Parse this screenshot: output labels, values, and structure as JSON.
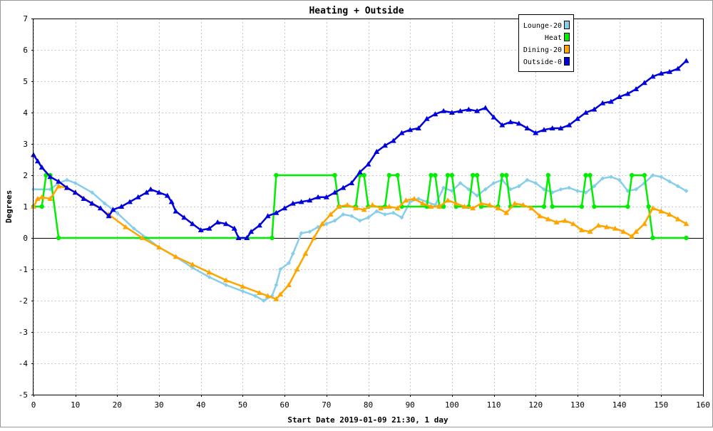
{
  "chart_data": {
    "type": "line",
    "title": "Heating + Outside",
    "xlabel": "Start Date 2019-01-09 21:30, 1 day",
    "ylabel": "Degrees",
    "xlim": [
      0,
      160
    ],
    "ylim": [
      -5,
      7
    ],
    "xticks": [
      0,
      10,
      20,
      30,
      40,
      50,
      60,
      70,
      80,
      90,
      100,
      110,
      120,
      130,
      140,
      150,
      160
    ],
    "yticks": [
      -5,
      -4,
      -3,
      -2,
      -1,
      0,
      1,
      2,
      3,
      4,
      5,
      6,
      7
    ],
    "grid": true,
    "legend_position": "top-right",
    "series": [
      {
        "name": "Lounge-20",
        "color": "#87ceeb",
        "marker": "diamond",
        "points": [
          [
            0,
            1.55
          ],
          [
            4,
            1.55
          ],
          [
            6,
            1.75
          ],
          [
            8,
            1.85
          ],
          [
            10,
            1.75
          ],
          [
            14,
            1.45
          ],
          [
            17,
            1.1
          ],
          [
            20,
            0.8
          ],
          [
            24,
            0.3
          ],
          [
            27,
            0
          ],
          [
            30,
            -0.3
          ],
          [
            34,
            -0.6
          ],
          [
            38,
            -0.95
          ],
          [
            42,
            -1.25
          ],
          [
            46,
            -1.5
          ],
          [
            50,
            -1.7
          ],
          [
            53,
            -1.85
          ],
          [
            55,
            -2.0
          ],
          [
            57,
            -1.85
          ],
          [
            58,
            -1.5
          ],
          [
            59,
            -1.0
          ],
          [
            61,
            -0.8
          ],
          [
            62,
            -0.5
          ],
          [
            64,
            0.15
          ],
          [
            66,
            0.2
          ],
          [
            68,
            0.35
          ],
          [
            70,
            0.45
          ],
          [
            72,
            0.55
          ],
          [
            74,
            0.75
          ],
          [
            76,
            0.7
          ],
          [
            78,
            0.55
          ],
          [
            80,
            0.65
          ],
          [
            82,
            0.85
          ],
          [
            84,
            0.75
          ],
          [
            86,
            0.8
          ],
          [
            88,
            0.65
          ],
          [
            90,
            1.15
          ],
          [
            92,
            1.25
          ],
          [
            94,
            1.15
          ],
          [
            96,
            1.05
          ],
          [
            98,
            1.6
          ],
          [
            100,
            1.5
          ],
          [
            102,
            1.75
          ],
          [
            104,
            1.55
          ],
          [
            106,
            1.35
          ],
          [
            108,
            1.55
          ],
          [
            110,
            1.75
          ],
          [
            112,
            1.85
          ],
          [
            114,
            1.55
          ],
          [
            116,
            1.65
          ],
          [
            118,
            1.85
          ],
          [
            120,
            1.75
          ],
          [
            122,
            1.55
          ],
          [
            124,
            1.45
          ],
          [
            126,
            1.55
          ],
          [
            128,
            1.6
          ],
          [
            130,
            1.5
          ],
          [
            132,
            1.45
          ],
          [
            134,
            1.65
          ],
          [
            136,
            1.9
          ],
          [
            138,
            1.95
          ],
          [
            140,
            1.85
          ],
          [
            142,
            1.5
          ],
          [
            144,
            1.55
          ],
          [
            146,
            1.75
          ],
          [
            148,
            2.0
          ],
          [
            150,
            1.95
          ],
          [
            152,
            1.8
          ],
          [
            154,
            1.65
          ],
          [
            156,
            1.5
          ]
        ]
      },
      {
        "name": "Heat",
        "color": "#00ee00",
        "marker": "circle",
        "points": [
          [
            0,
            1
          ],
          [
            2,
            1
          ],
          [
            3,
            2
          ],
          [
            4,
            2
          ],
          [
            6,
            0
          ],
          [
            57,
            0
          ],
          [
            58,
            2
          ],
          [
            72,
            2
          ],
          [
            73,
            1
          ],
          [
            77,
            1
          ],
          [
            78,
            2
          ],
          [
            79,
            2
          ],
          [
            80,
            1
          ],
          [
            84,
            1
          ],
          [
            85,
            2
          ],
          [
            87,
            2
          ],
          [
            88,
            1
          ],
          [
            94,
            1
          ],
          [
            95,
            2
          ],
          [
            96,
            2
          ],
          [
            97,
            1
          ],
          [
            98,
            1
          ],
          [
            99,
            2
          ],
          [
            100,
            2
          ],
          [
            101,
            1
          ],
          [
            104,
            1
          ],
          [
            105,
            2
          ],
          [
            106,
            2
          ],
          [
            107,
            1
          ],
          [
            111,
            1
          ],
          [
            112,
            2
          ],
          [
            113,
            2
          ],
          [
            114,
            1
          ],
          [
            122,
            1
          ],
          [
            123,
            2
          ],
          [
            124,
            1
          ],
          [
            131,
            1
          ],
          [
            132,
            2
          ],
          [
            133,
            2
          ],
          [
            134,
            1
          ],
          [
            142,
            1
          ],
          [
            143,
            2
          ],
          [
            146,
            2
          ],
          [
            147,
            1
          ],
          [
            148,
            0
          ],
          [
            156,
            0
          ]
        ]
      },
      {
        "name": "Dining-20",
        "color": "#ffa500",
        "marker": "triangle",
        "points": [
          [
            0,
            1
          ],
          [
            1,
            1.25
          ],
          [
            2,
            1.3
          ],
          [
            4,
            1.25
          ],
          [
            6,
            1.65
          ],
          [
            8,
            1.6
          ],
          [
            10,
            1.45
          ],
          [
            14,
            1.1
          ],
          [
            18,
            0.75
          ],
          [
            22,
            0.35
          ],
          [
            26,
            0
          ],
          [
            30,
            -0.3
          ],
          [
            34,
            -0.6
          ],
          [
            38,
            -0.85
          ],
          [
            42,
            -1.1
          ],
          [
            46,
            -1.35
          ],
          [
            50,
            -1.55
          ],
          [
            54,
            -1.75
          ],
          [
            56,
            -1.85
          ],
          [
            58,
            -1.95
          ],
          [
            59,
            -1.8
          ],
          [
            61,
            -1.5
          ],
          [
            63,
            -1.0
          ],
          [
            65,
            -0.5
          ],
          [
            67,
            0
          ],
          [
            69,
            0.45
          ],
          [
            71,
            0.75
          ],
          [
            73,
            1.0
          ],
          [
            75,
            1.05
          ],
          [
            77,
            0.95
          ],
          [
            79,
            0.9
          ],
          [
            81,
            1.05
          ],
          [
            83,
            0.95
          ],
          [
            85,
            1.0
          ],
          [
            87,
            0.95
          ],
          [
            89,
            1.2
          ],
          [
            91,
            1.25
          ],
          [
            93,
            1.1
          ],
          [
            95,
            1.0
          ],
          [
            97,
            1.0
          ],
          [
            99,
            1.2
          ],
          [
            101,
            1.1
          ],
          [
            103,
            1.0
          ],
          [
            105,
            0.95
          ],
          [
            107,
            1.1
          ],
          [
            109,
            1.05
          ],
          [
            111,
            0.95
          ],
          [
            113,
            0.8
          ],
          [
            115,
            1.1
          ],
          [
            117,
            1.05
          ],
          [
            119,
            0.95
          ],
          [
            121,
            0.7
          ],
          [
            123,
            0.6
          ],
          [
            125,
            0.5
          ],
          [
            127,
            0.55
          ],
          [
            129,
            0.45
          ],
          [
            131,
            0.25
          ],
          [
            133,
            0.2
          ],
          [
            135,
            0.4
          ],
          [
            137,
            0.35
          ],
          [
            139,
            0.3
          ],
          [
            141,
            0.2
          ],
          [
            143,
            0.05
          ],
          [
            144,
            0.2
          ],
          [
            146,
            0.45
          ],
          [
            148,
            0.95
          ],
          [
            150,
            0.85
          ],
          [
            152,
            0.75
          ],
          [
            154,
            0.6
          ],
          [
            156,
            0.45
          ]
        ]
      },
      {
        "name": "Outside-0",
        "color": "#0000dd",
        "marker": "triangle",
        "points": [
          [
            0,
            2.65
          ],
          [
            1,
            2.45
          ],
          [
            2,
            2.25
          ],
          [
            4,
            1.95
          ],
          [
            6,
            1.8
          ],
          [
            8,
            1.6
          ],
          [
            10,
            1.45
          ],
          [
            12,
            1.25
          ],
          [
            14,
            1.1
          ],
          [
            16,
            0.95
          ],
          [
            18,
            0.7
          ],
          [
            19,
            0.9
          ],
          [
            21,
            1.0
          ],
          [
            23,
            1.15
          ],
          [
            25,
            1.3
          ],
          [
            27,
            1.45
          ],
          [
            28,
            1.55
          ],
          [
            30,
            1.45
          ],
          [
            32,
            1.35
          ],
          [
            33,
            1.15
          ],
          [
            34,
            0.85
          ],
          [
            36,
            0.65
          ],
          [
            38,
            0.45
          ],
          [
            40,
            0.25
          ],
          [
            42,
            0.3
          ],
          [
            44,
            0.5
          ],
          [
            46,
            0.45
          ],
          [
            48,
            0.3
          ],
          [
            49,
            0
          ],
          [
            51,
            0
          ],
          [
            52,
            0.2
          ],
          [
            54,
            0.4
          ],
          [
            56,
            0.7
          ],
          [
            58,
            0.8
          ],
          [
            60,
            0.95
          ],
          [
            62,
            1.1
          ],
          [
            64,
            1.15
          ],
          [
            66,
            1.2
          ],
          [
            68,
            1.3
          ],
          [
            70,
            1.3
          ],
          [
            72,
            1.45
          ],
          [
            74,
            1.6
          ],
          [
            76,
            1.75
          ],
          [
            78,
            2.1
          ],
          [
            80,
            2.35
          ],
          [
            82,
            2.75
          ],
          [
            84,
            2.95
          ],
          [
            86,
            3.1
          ],
          [
            88,
            3.35
          ],
          [
            90,
            3.45
          ],
          [
            92,
            3.5
          ],
          [
            94,
            3.8
          ],
          [
            96,
            3.95
          ],
          [
            98,
            4.05
          ],
          [
            100,
            4.0
          ],
          [
            102,
            4.05
          ],
          [
            104,
            4.1
          ],
          [
            106,
            4.05
          ],
          [
            108,
            4.15
          ],
          [
            110,
            3.85
          ],
          [
            112,
            3.6
          ],
          [
            114,
            3.7
          ],
          [
            116,
            3.65
          ],
          [
            118,
            3.5
          ],
          [
            120,
            3.35
          ],
          [
            122,
            3.45
          ],
          [
            124,
            3.5
          ],
          [
            126,
            3.5
          ],
          [
            128,
            3.6
          ],
          [
            130,
            3.8
          ],
          [
            132,
            4.0
          ],
          [
            134,
            4.1
          ],
          [
            136,
            4.3
          ],
          [
            138,
            4.35
          ],
          [
            140,
            4.5
          ],
          [
            142,
            4.6
          ],
          [
            144,
            4.75
          ],
          [
            146,
            4.95
          ],
          [
            148,
            5.15
          ],
          [
            150,
            5.25
          ],
          [
            152,
            5.3
          ],
          [
            154,
            5.4
          ],
          [
            156,
            5.65
          ]
        ]
      }
    ]
  }
}
